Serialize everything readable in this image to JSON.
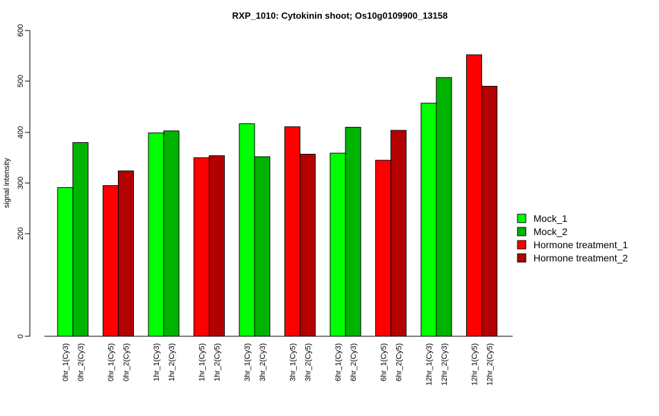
{
  "chart_data": {
    "type": "bar",
    "title": "RXP_1010: Cytokinin shoot; Os10g0109900_13158",
    "xlabel": "",
    "ylabel": "signal intensity",
    "ylim": [
      0,
      600
    ],
    "scale": "custom-nonlinear",
    "yticks": [
      0,
      200,
      300,
      400,
      500,
      600
    ],
    "grid": false,
    "legend_position": "right",
    "bars": [
      {
        "label": "0hr_1(Cy3)",
        "value": 291,
        "series": "Mock_1"
      },
      {
        "label": "0hr_2(Cy3)",
        "value": 380,
        "series": "Mock_2"
      },
      {
        "label": "0hr_1(Cy5)",
        "value": 295,
        "series": "Hormone treatment_1"
      },
      {
        "label": "0hr_2(Cy5)",
        "value": 324,
        "series": "Hormone treatment_2"
      },
      {
        "label": "1hr_1(Cy3)",
        "value": 399,
        "series": "Mock_1"
      },
      {
        "label": "1hr_2(Cy3)",
        "value": 403,
        "series": "Mock_2"
      },
      {
        "label": "1hr_1(Cy5)",
        "value": 350,
        "series": "Hormone treatment_1"
      },
      {
        "label": "1hr_2(Cy5)",
        "value": 354,
        "series": "Hormone treatment_2"
      },
      {
        "label": "3hr_1(Cy3)",
        "value": 417,
        "series": "Mock_1"
      },
      {
        "label": "3hr_2(Cy3)",
        "value": 352,
        "series": "Mock_2"
      },
      {
        "label": "3hr_1(Cy5)",
        "value": 411,
        "series": "Hormone treatment_1"
      },
      {
        "label": "3hr_2(Cy5)",
        "value": 357,
        "series": "Hormone treatment_2"
      },
      {
        "label": "6hr_1(Cy3)",
        "value": 359,
        "series": "Mock_1"
      },
      {
        "label": "6hr_2(Cy3)",
        "value": 410,
        "series": "Mock_2"
      },
      {
        "label": "6hr_1(Cy5)",
        "value": 345,
        "series": "Hormone treatment_1"
      },
      {
        "label": "6hr_2(Cy5)",
        "value": 404,
        "series": "Hormone treatment_2"
      },
      {
        "label": "12hr_1(Cy3)",
        "value": 457,
        "series": "Mock_1"
      },
      {
        "label": "12hr_2(Cy3)",
        "value": 507,
        "series": "Mock_2"
      },
      {
        "label": "12hr_1(Cy5)",
        "value": 552,
        "series": "Hormone treatment_1"
      },
      {
        "label": "12hr_2(Cy5)",
        "value": 490,
        "series": "Hormone treatment_2"
      }
    ],
    "legend": [
      {
        "name": "Mock_1",
        "color": "#00ff00"
      },
      {
        "name": "Mock_2",
        "color": "#00b300"
      },
      {
        "name": "Hormone treatment_1",
        "color": "#ff0000"
      },
      {
        "name": "Hormone treatment_2",
        "color": "#b30000"
      }
    ]
  }
}
